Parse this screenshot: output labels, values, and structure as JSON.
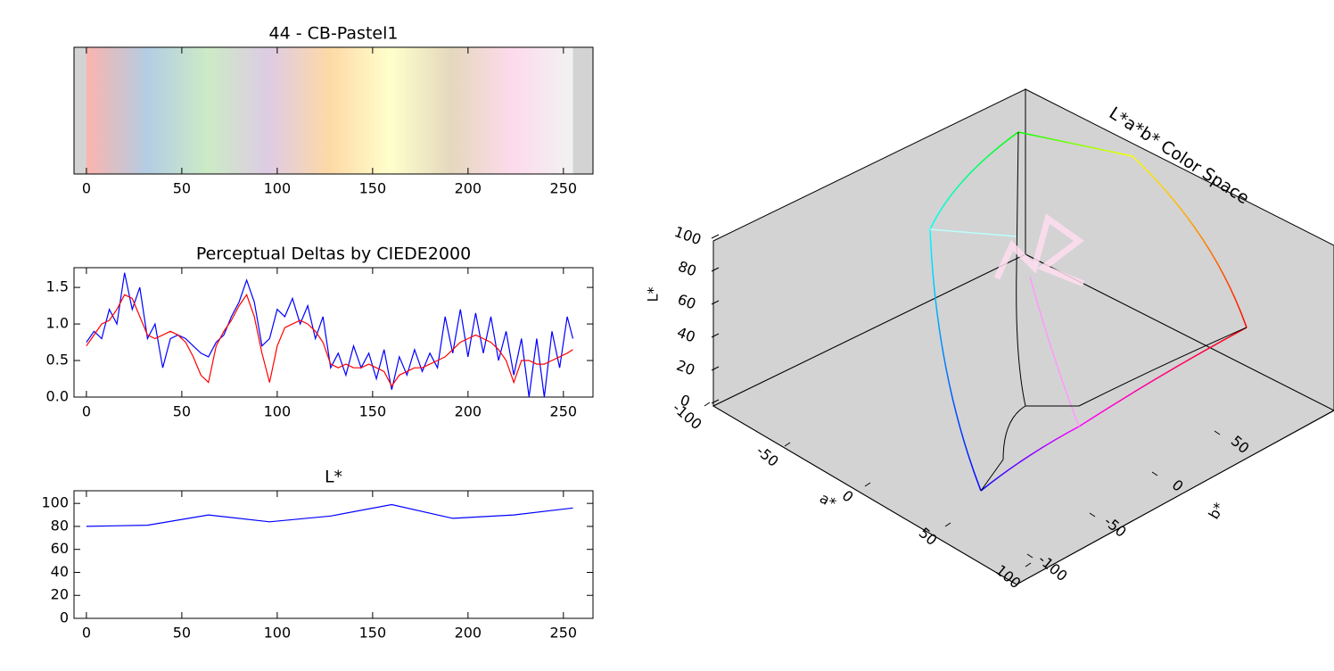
{
  "chart_data": [
    {
      "type": "colorbar",
      "title": "44 - CB-Pastel1",
      "colors": [
        "#fbb4ae",
        "#b3cde3",
        "#ccebc5",
        "#decbe4",
        "#fed9a6",
        "#ffffcc",
        "#e5d8bd",
        "#fddaec",
        "#f2f2f2"
      ],
      "range": [
        0,
        255
      ],
      "xlim": [
        -6.5,
        265.5
      ],
      "xticks": [
        0,
        50,
        100,
        150,
        200,
        250
      ]
    },
    {
      "type": "line",
      "title": "Perceptual Deltas by CIEDE2000",
      "x": [
        0,
        4,
        8,
        12,
        16,
        20,
        24,
        28,
        32,
        36,
        40,
        44,
        48,
        52,
        56,
        60,
        64,
        68,
        72,
        76,
        80,
        84,
        88,
        92,
        96,
        100,
        104,
        108,
        112,
        116,
        120,
        124,
        128,
        132,
        136,
        140,
        144,
        148,
        152,
        156,
        160,
        164,
        168,
        172,
        176,
        180,
        184,
        188,
        192,
        196,
        200,
        204,
        208,
        212,
        216,
        220,
        224,
        228,
        232,
        236,
        240,
        244,
        248,
        252,
        255
      ],
      "series": [
        {
          "color": "#0000ff",
          "values": [
            0.75,
            0.9,
            0.8,
            1.2,
            1.0,
            1.7,
            1.2,
            1.5,
            0.8,
            1.0,
            0.4,
            0.8,
            0.85,
            0.8,
            0.7,
            0.6,
            0.55,
            0.75,
            0.85,
            1.1,
            1.3,
            1.6,
            1.3,
            0.7,
            0.8,
            1.2,
            1.1,
            1.35,
            1.0,
            1.25,
            0.8,
            1.1,
            0.4,
            0.6,
            0.3,
            0.7,
            0.4,
            0.6,
            0.25,
            0.65,
            0.1,
            0.55,
            0.3,
            0.65,
            0.35,
            0.6,
            0.4,
            1.1,
            0.6,
            1.2,
            0.55,
            1.15,
            0.6,
            1.1,
            0.5,
            0.9,
            0.3,
            0.8,
            0.0,
            0.8,
            0.0,
            0.9,
            0.4,
            1.1,
            0.8
          ]
        },
        {
          "color": "#ff0000",
          "values": [
            0.7,
            0.85,
            1.0,
            1.05,
            1.2,
            1.4,
            1.35,
            1.1,
            0.85,
            0.8,
            0.85,
            0.9,
            0.85,
            0.75,
            0.55,
            0.3,
            0.2,
            0.7,
            0.9,
            1.05,
            1.25,
            1.4,
            1.1,
            0.6,
            0.2,
            0.7,
            0.95,
            1.0,
            1.05,
            1.0,
            0.9,
            0.75,
            0.45,
            0.4,
            0.45,
            0.4,
            0.4,
            0.45,
            0.4,
            0.35,
            0.15,
            0.3,
            0.35,
            0.4,
            0.4,
            0.45,
            0.5,
            0.55,
            0.65,
            0.75,
            0.8,
            0.85,
            0.8,
            0.75,
            0.65,
            0.5,
            0.2,
            0.5,
            0.5,
            0.45,
            0.45,
            0.5,
            0.55,
            0.6,
            0.65
          ]
        }
      ],
      "xlim": [
        -6.5,
        265.5
      ],
      "xticks": [
        0,
        50,
        100,
        150,
        200,
        250
      ],
      "ylim": [
        0,
        1.77
      ],
      "yticks": [
        {
          "value": 0,
          "label": "0.0"
        },
        {
          "value": 0.5,
          "label": "0.5"
        },
        {
          "value": 1,
          "label": "1.0"
        },
        {
          "value": 1.5,
          "label": "1.5"
        }
      ]
    },
    {
      "type": "line",
      "title": "L*",
      "x": [
        0,
        32,
        64,
        96,
        128,
        160,
        192,
        224,
        255
      ],
      "series": [
        {
          "color": "#0000ff",
          "values": [
            80,
            81,
            90,
            84,
            89,
            99,
            87,
            90,
            96
          ]
        }
      ],
      "xlim": [
        -6.5,
        265.5
      ],
      "xticks": [
        0,
        50,
        100,
        150,
        200,
        250
      ],
      "ylim": [
        0,
        111
      ],
      "yticks": [
        0,
        20,
        40,
        60,
        80,
        100
      ]
    },
    {
      "type": "lab3d",
      "title": "L*a*b* Color Space",
      "xlabel": "a*",
      "ylabel": "b*",
      "zlabel": "L*",
      "xticks": [
        -100,
        -50,
        0,
        50,
        100
      ],
      "yticks": [
        -100,
        -50,
        0,
        50
      ],
      "zticks": [
        0,
        20,
        40,
        60,
        80,
        100
      ]
    }
  ]
}
